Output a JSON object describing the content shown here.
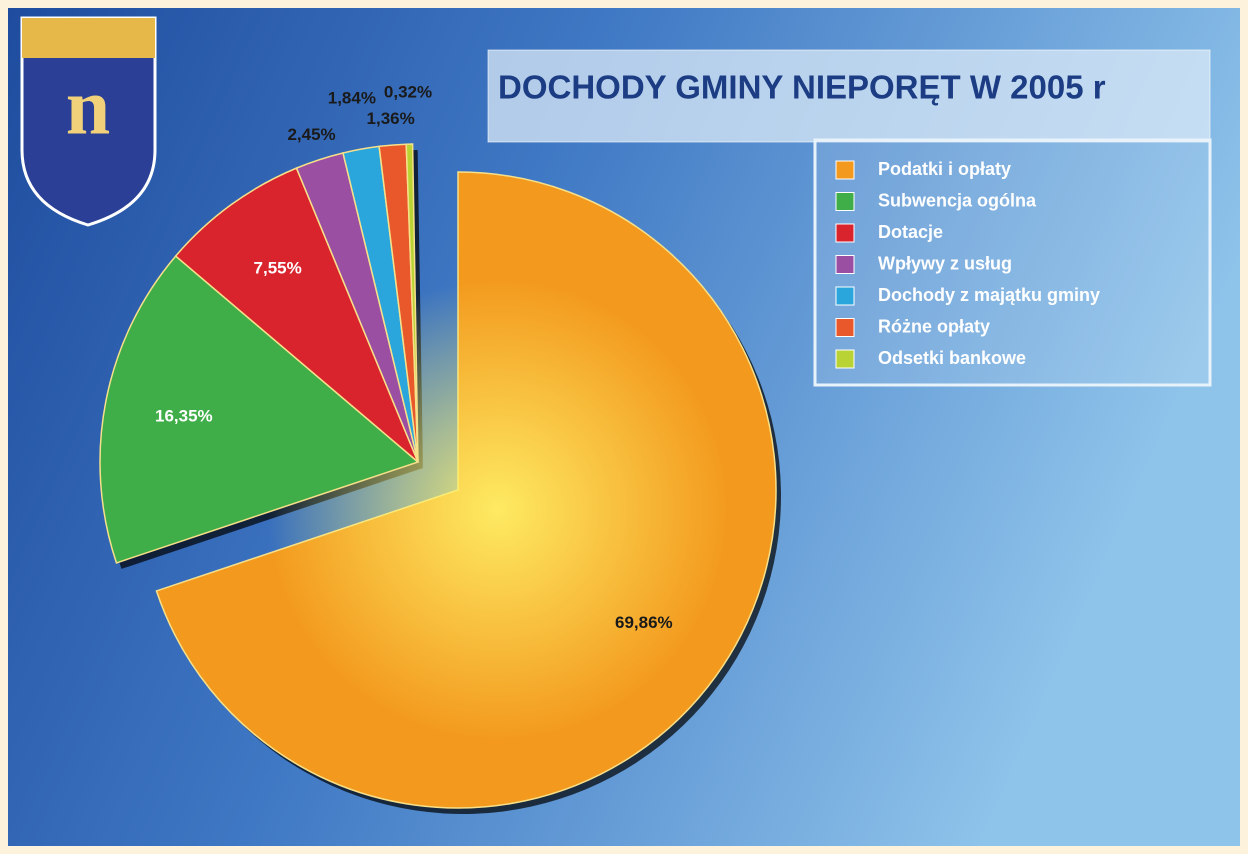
{
  "chart_data": {
    "type": "pie",
    "title": "DOCHODY GMINY NIEPORĘT W 2005 r",
    "categories": [
      "Podatki i opłaty",
      "Subwencja ogólna",
      "Dotacje",
      "Wpływy z usług",
      "Dochody z majątku gminy",
      "Różne opłaty",
      "Odsetki bankowe"
    ],
    "values": [
      69.86,
      16.35,
      7.55,
      2.45,
      1.84,
      1.36,
      0.32
    ],
    "value_labels": [
      "69,86%",
      "16,35%",
      "7,55%",
      "2,45%",
      "1,84%",
      "1,36%",
      "0,32%"
    ],
    "colors": [
      "#f39a1e",
      "#3fae49",
      "#d9232d",
      "#9b4fa3",
      "#2aa6dc",
      "#e8582a",
      "#b9d334"
    ],
    "legend": "top-right"
  }
}
